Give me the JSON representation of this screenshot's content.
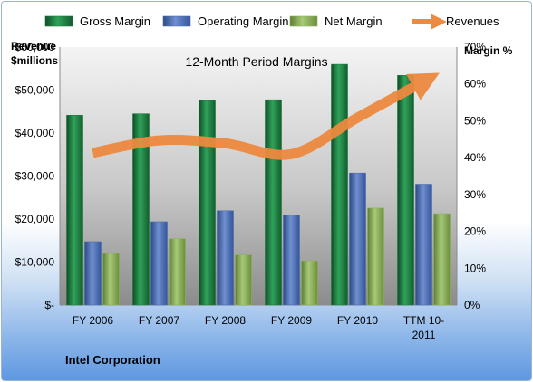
{
  "chart_data": {
    "type": "bar",
    "title": "12-Month Period Margins",
    "categories": [
      "FY 2006",
      "FY 2007",
      "FY 2008",
      "FY 2009",
      "FY 2010",
      "TTM 10-2011"
    ],
    "category_lines": [
      [
        "FY 2006"
      ],
      [
        "FY 2007"
      ],
      [
        "FY 2008"
      ],
      [
        "FY 2009"
      ],
      [
        "FY 2010"
      ],
      [
        "TTM 10-",
        "2011"
      ]
    ],
    "series": [
      {
        "name": "Gross Margin",
        "kind": "bar",
        "axis": "right",
        "color": "#1f7a3f",
        "values": [
          51.5,
          51.9,
          55.5,
          55.7,
          65.3,
          62.3
        ]
      },
      {
        "name": "Operating Margin",
        "kind": "bar",
        "axis": "right",
        "color": "#4e6fb0",
        "values": [
          17.2,
          22.6,
          25.6,
          24.4,
          35.8,
          32.8
        ]
      },
      {
        "name": "Net Margin",
        "kind": "bar",
        "axis": "right",
        "color": "#8db35a",
        "values": [
          14.0,
          18.0,
          13.6,
          12.0,
          26.3,
          24.8
        ]
      },
      {
        "name": "Revenues",
        "kind": "line",
        "axis": "left",
        "color": "#ed8a3f",
        "values": [
          35400,
          38300,
          37600,
          35100,
          43600,
          52000
        ]
      }
    ],
    "left_axis": {
      "title_lines": [
        "Revenue",
        "$millions"
      ],
      "range": [
        0,
        60000
      ],
      "ticks": [
        0,
        10000,
        20000,
        30000,
        40000,
        50000,
        60000
      ],
      "tick_labels": [
        "$-",
        "$10,000",
        "$20,000",
        "$30,000",
        "$40,000",
        "$50,000",
        "$60,000"
      ]
    },
    "right_axis": {
      "title": "Margin %",
      "range": [
        0,
        70
      ],
      "ticks": [
        0,
        10,
        20,
        30,
        40,
        50,
        60,
        70
      ],
      "tick_labels": [
        "0%",
        "10%",
        "20%",
        "30%",
        "40%",
        "50%",
        "60%",
        "70%"
      ]
    },
    "legend_position": "top",
    "grid": false
  },
  "footer": {
    "company": "Intel Corporation"
  }
}
